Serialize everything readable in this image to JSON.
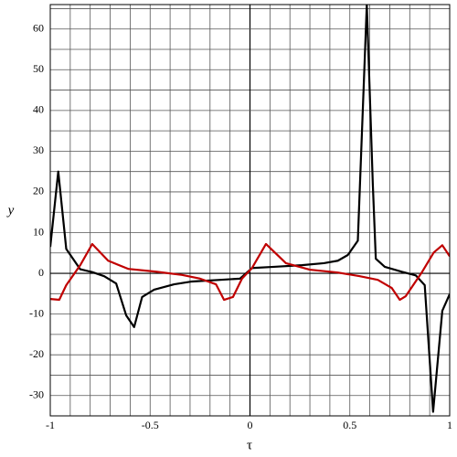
{
  "chart_data": {
    "type": "line",
    "xlabel": "τ",
    "ylabel": "y",
    "xlim": [
      -1,
      1
    ],
    "ylim": [
      -35,
      66
    ],
    "xticks": [
      -1,
      -0.5,
      0,
      0.5,
      1
    ],
    "yticks": [
      -30,
      -20,
      -10,
      0,
      10,
      20,
      30,
      40,
      50,
      60
    ],
    "x_minor_ticks": [
      -0.9,
      -0.8,
      -0.7,
      -0.6,
      -0.4,
      -0.3,
      -0.2,
      -0.1,
      0.1,
      0.2,
      0.3,
      0.4,
      0.6,
      0.7,
      0.8,
      0.9
    ],
    "y_minor_ticks": [
      -25,
      -15,
      -5,
      5,
      15,
      25,
      35,
      45,
      55,
      65
    ],
    "grid": true,
    "series": [
      {
        "color": "#000000",
        "x": [
          -1,
          -0.96,
          -0.92,
          -0.85,
          -0.79,
          -0.73,
          -0.67,
          -0.62,
          -0.58,
          -0.54,
          -0.48,
          -0.38,
          -0.29,
          -0.15,
          -0.05,
          0.01,
          0.12,
          0.26,
          0.37,
          0.44,
          0.49,
          0.54,
          0.585,
          0.615,
          0.63,
          0.675,
          0.76,
          0.83,
          0.875,
          0.917,
          0.963,
          1
        ],
        "values": [
          6.5,
          25,
          6,
          1,
          0.3,
          -0.7,
          -2.5,
          -10.3,
          -13.2,
          -5.8,
          -4,
          -2.7,
          -2,
          -1.6,
          -1.3,
          1.3,
          1.6,
          2,
          2.5,
          3.1,
          4.5,
          8,
          66,
          22,
          3.6,
          1.6,
          0.4,
          -0.5,
          -2.9,
          -34,
          -9.2,
          -5.1
        ]
      },
      {
        "color": "#c00000",
        "x": [
          -1,
          -0.955,
          -0.92,
          -0.85,
          -0.79,
          -0.71,
          -0.61,
          -0.47,
          -0.34,
          -0.25,
          -0.17,
          -0.13,
          -0.085,
          -0.04,
          0.01,
          0.08,
          0.18,
          0.3,
          0.44,
          0.55,
          0.64,
          0.71,
          0.75,
          0.78,
          0.86,
          0.92,
          0.963,
          1
        ],
        "values": [
          -6.3,
          -6.5,
          -2.9,
          2,
          7.2,
          3.1,
          1.1,
          0.4,
          -0.4,
          -1.3,
          -2.7,
          -6.5,
          -5.8,
          -1.3,
          1.3,
          7.2,
          2.5,
          0.9,
          0.2,
          -0.7,
          -1.6,
          -3.6,
          -6.5,
          -5.6,
          0.2,
          5.1,
          6.9,
          4.2
        ]
      }
    ]
  }
}
